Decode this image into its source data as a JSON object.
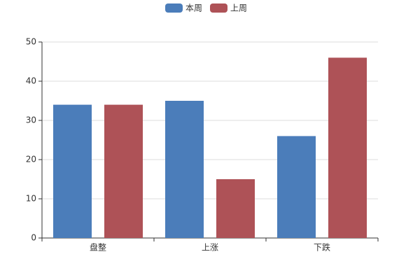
{
  "chart_data": {
    "type": "bar",
    "categories": [
      "盘整",
      "上涨",
      "下跌"
    ],
    "series": [
      {
        "name": "本周",
        "color": "#4b7dba",
        "values": [
          34,
          35,
          26
        ]
      },
      {
        "name": "上周",
        "color": "#ae5257",
        "values": [
          34,
          15,
          46
        ]
      }
    ],
    "ylim": [
      0,
      50
    ],
    "yticks": [
      0,
      10,
      20,
      30,
      40,
      50
    ],
    "grid": true,
    "legend": "top"
  }
}
